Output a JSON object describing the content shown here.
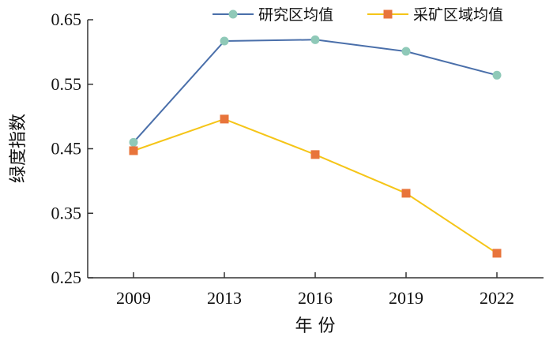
{
  "chart_data": {
    "type": "line",
    "categories": [
      "2009",
      "2013",
      "2016",
      "2019",
      "2022"
    ],
    "series": [
      {
        "name": "研究区均值",
        "values": [
          0.46,
          0.617,
          0.619,
          0.601,
          0.564
        ],
        "color": "#4a6faa",
        "marker": "circle",
        "marker_color": "#8fc9b8"
      },
      {
        "name": "采矿区域均值",
        "values": [
          0.447,
          0.496,
          0.441,
          0.381,
          0.288
        ],
        "color": "#f5c518",
        "marker": "square",
        "marker_color": "#e8743b"
      }
    ],
    "xlabel": "年 份",
    "ylabel": "绿度指数",
    "ylim": [
      0.25,
      0.65
    ],
    "yticks": [
      "0.25",
      "0.35",
      "0.45",
      "0.55",
      "0.65"
    ],
    "grid": false,
    "legend": "top-right"
  }
}
